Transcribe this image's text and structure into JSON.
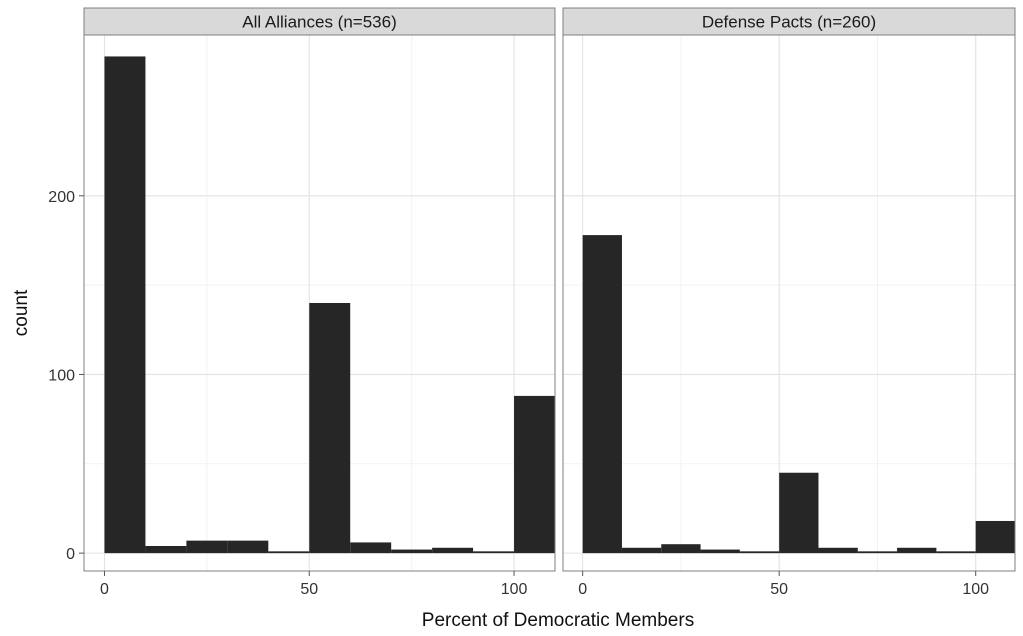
{
  "chart_data": {
    "type": "bar",
    "xlabel": "Percent of Democratic Members",
    "ylabel": "count",
    "xlim": [
      -5,
      110
    ],
    "ylim": [
      -10,
      290
    ],
    "x_ticks": [
      0,
      50,
      100
    ],
    "y_ticks": [
      0,
      100,
      200
    ],
    "bin_width": 10,
    "bin_starts": [
      0,
      10,
      20,
      30,
      40,
      50,
      60,
      70,
      80,
      90,
      100
    ],
    "grid": true,
    "panels": [
      {
        "title": "All Alliances (n=536)",
        "values": [
          278,
          4,
          7,
          7,
          1,
          140,
          6,
          2,
          3,
          1,
          88
        ]
      },
      {
        "title": "Defense Pacts (n=260)",
        "values": [
          178,
          3,
          5,
          2,
          1,
          45,
          3,
          1,
          3,
          1,
          18
        ]
      }
    ]
  }
}
